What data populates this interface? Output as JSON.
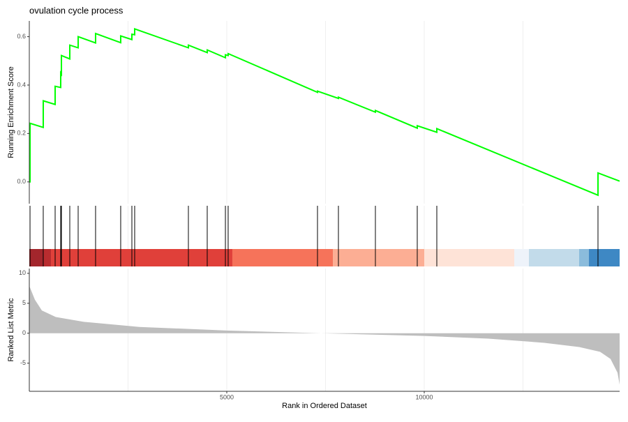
{
  "chart_data": [
    {
      "type": "line",
      "title": "ovulation cycle process",
      "ylabel": "Running Enrichment Score",
      "x": [
        0,
        18,
        18,
        353,
        353,
        654,
        654,
        795,
        795,
        813,
        813,
        1025,
        1025,
        1237,
        1237,
        1678,
        1678,
        2314,
        2314,
        2597,
        2597,
        2668,
        2668,
        4028,
        4028,
        4505,
        4505,
        4965,
        4965,
        5035,
        5035,
        7297,
        7297,
        7827,
        7827,
        8763,
        8763,
        9823,
        9823,
        10318,
        10318,
        14399,
        14399,
        14947
      ],
      "values": [
        0,
        0,
        0.242,
        0.225,
        0.335,
        0.32,
        0.395,
        0.39,
        0.45,
        0.445,
        0.522,
        0.508,
        0.565,
        0.554,
        0.6,
        0.574,
        0.613,
        0.575,
        0.603,
        0.588,
        0.61,
        0.608,
        0.632,
        0.554,
        0.565,
        0.534,
        0.545,
        0.513,
        0.525,
        0.522,
        0.53,
        0.37,
        0.375,
        0.345,
        0.35,
        0.288,
        0.295,
        0.222,
        0.232,
        0.205,
        0.22,
        -0.055,
        0.037,
        0.003
      ],
      "color": "#00ff00",
      "xlim": [
        0,
        14947
      ],
      "ylim": [
        -0.09,
        0.665
      ],
      "yticks": [
        {
          "value": 0,
          "label": "0.0"
        },
        0.2,
        0.4,
        0.6
      ],
      "minor_xticks": [
        2500,
        5000,
        7500,
        10000,
        12500
      ]
    },
    {
      "type": "hits",
      "x": [
        18,
        353,
        654,
        795,
        813,
        1025,
        1237,
        1678,
        2314,
        2597,
        2668,
        4028,
        4505,
        4965,
        5035,
        7297,
        7827,
        8763,
        9823,
        10318,
        14399
      ],
      "color": "#000000",
      "xlim": [
        0,
        14947
      ],
      "color_bar": {
        "breaks": [
          0,
          353,
          548,
          5141,
          7686,
          10000,
          12279,
          12650,
          13922,
          14170,
          14947
        ],
        "colors": [
          "#a3262c",
          "#b92c2f",
          "#e0403a",
          "#f6735a",
          "#fcae94",
          "#fee3d7",
          "#eef3fa",
          "#c2dbea",
          "#8bbcdc",
          "#3e88c4"
        ]
      },
      "minor_xticks": [
        2500,
        5000,
        7500,
        10000,
        12500
      ]
    },
    {
      "type": "area",
      "ylabel": "Ranked List Metric",
      "xlabel": "Rank in Ordered Dataset",
      "x": [
        0,
        141,
        318,
        671,
        1378,
        2792,
        5000,
        7385,
        10000,
        11625,
        13039,
        13922,
        14452,
        14717,
        14894,
        14947
      ],
      "values": [
        7.9,
        5.6,
        3.8,
        2.7,
        1.9,
        1.05,
        0.45,
        0,
        -0.45,
        -0.9,
        -1.6,
        -2.3,
        -3.1,
        -4.3,
        -6.6,
        -8.6
      ],
      "color": "#bebebe",
      "xlim": [
        0,
        14947
      ],
      "ylim": [
        -9.7,
        10.8
      ],
      "yticks": [
        -5,
        0,
        5,
        10
      ],
      "xticks": [
        5000,
        10000
      ],
      "minor_xticks": [
        2500,
        7500,
        12500
      ]
    }
  ]
}
